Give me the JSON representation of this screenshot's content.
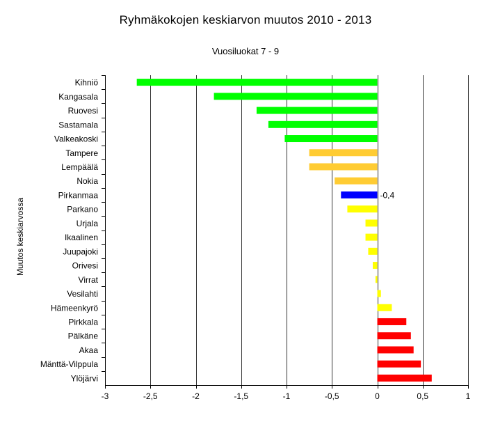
{
  "chart_data": {
    "type": "bar",
    "orientation": "horizontal",
    "title": "Ryhmäkokojen keskiarvon muutos 2010 - 2013",
    "subtitle": "Vuosiluokat 7 - 9",
    "ylabel": "Muutos keskiarvossa",
    "xlabel": "",
    "xlim": [
      -3,
      1
    ],
    "xticks": [
      -3,
      -2.5,
      -2,
      -1.5,
      -1,
      -0.5,
      0,
      0.5,
      1
    ],
    "xtick_labels": [
      "-3",
      "-2,5",
      "-2",
      "-1,5",
      "-1",
      "-0,5",
      "0",
      "0,5",
      "1"
    ],
    "grid": "vertical major gridlines",
    "legend": "none",
    "categories": [
      "Kihniö",
      "Kangasala",
      "Ruovesi",
      "Sastamala",
      "Valkeakoski",
      "Tampere",
      "Lempäälä",
      "Nokia",
      "Pirkanmaa",
      "Parkano",
      "Urjala",
      "Ikaalinen",
      "Juupajoki",
      "Orivesi",
      "Virrat",
      "Vesilahti",
      "Hämeenkyrö",
      "Pirkkala",
      "Pälkäne",
      "Akaa",
      "Mänttä-Vilppula",
      "Ylöjärvi"
    ],
    "values": [
      -2.65,
      -1.8,
      -1.33,
      -1.2,
      -1.02,
      -0.75,
      -0.75,
      -0.47,
      -0.4,
      -0.33,
      -0.13,
      -0.13,
      -0.1,
      -0.05,
      -0.02,
      0.04,
      0.16,
      0.32,
      0.37,
      0.4,
      0.48,
      0.6
    ],
    "bar_colors": [
      "#00ff00",
      "#00ff00",
      "#00ff00",
      "#00ff00",
      "#00ff00",
      "#ffcc33",
      "#ffcc33",
      "#ffcc33",
      "#0000ff",
      "#ffff00",
      "#ffff00",
      "#ffff00",
      "#ffff00",
      "#ffff00",
      "#ffff00",
      "#ffff00",
      "#ffff00",
      "#ff0000",
      "#ff0000",
      "#ff0000",
      "#ff0000",
      "#ff0000"
    ],
    "annotations": [
      {
        "category": "Pirkanmaa",
        "text": "-0,4"
      }
    ],
    "colors": {
      "axis": "#000000",
      "grid": "#000000",
      "background": "#ffffff"
    }
  }
}
